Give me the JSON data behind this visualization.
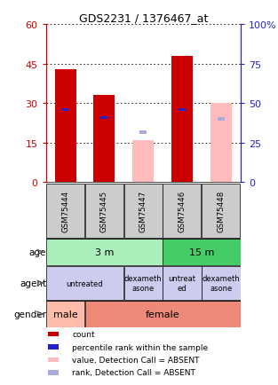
{
  "title": "GDS2231 / 1376467_at",
  "samples": [
    "GSM75444",
    "GSM75445",
    "GSM75447",
    "GSM75446",
    "GSM75448"
  ],
  "count_values": [
    43,
    33,
    0,
    48,
    0
  ],
  "count_absent": [
    0,
    0,
    16,
    0,
    30
  ],
  "percentile_values": [
    27.5,
    24.5,
    0,
    27.5,
    0
  ],
  "percentile_absent": [
    0,
    0,
    19,
    0,
    24
  ],
  "ylim_left": [
    0,
    60
  ],
  "ylim_right": [
    0,
    100
  ],
  "yticks_left": [
    0,
    15,
    30,
    45,
    60
  ],
  "yticks_right": [
    0,
    25,
    50,
    75,
    100
  ],
  "color_count": "#cc0000",
  "color_percentile": "#2222cc",
  "color_count_absent": "#ffbbbb",
  "color_percentile_absent": "#aaaadd",
  "age_row": [
    {
      "label": "3 m",
      "span": [
        0,
        3
      ],
      "color": "#aaeebb"
    },
    {
      "label": "15 m",
      "span": [
        3,
        5
      ],
      "color": "#44cc66"
    }
  ],
  "agent_row": [
    {
      "label": "untreated",
      "span": [
        0,
        2
      ],
      "color": "#ccccee"
    },
    {
      "label": "dexameth\nasone",
      "span": [
        2,
        3
      ],
      "color": "#ccccee"
    },
    {
      "label": "untreat\ned",
      "span": [
        3,
        4
      ],
      "color": "#ccccee"
    },
    {
      "label": "dexameth\nasone",
      "span": [
        4,
        5
      ],
      "color": "#ccccee"
    }
  ],
  "gender_row": [
    {
      "label": "male",
      "span": [
        0,
        1
      ],
      "color": "#ffbbaa"
    },
    {
      "label": "female",
      "span": [
        1,
        5
      ],
      "color": "#ee8877"
    }
  ],
  "legend_items": [
    {
      "color": "#cc0000",
      "label": "count"
    },
    {
      "color": "#2222cc",
      "label": "percentile rank within the sample"
    },
    {
      "color": "#ffbbbb",
      "label": "value, Detection Call = ABSENT"
    },
    {
      "color": "#aaaadd",
      "label": "rank, Detection Call = ABSENT"
    }
  ],
  "sample_col_color": "#cccccc",
  "bar_width": 0.55
}
